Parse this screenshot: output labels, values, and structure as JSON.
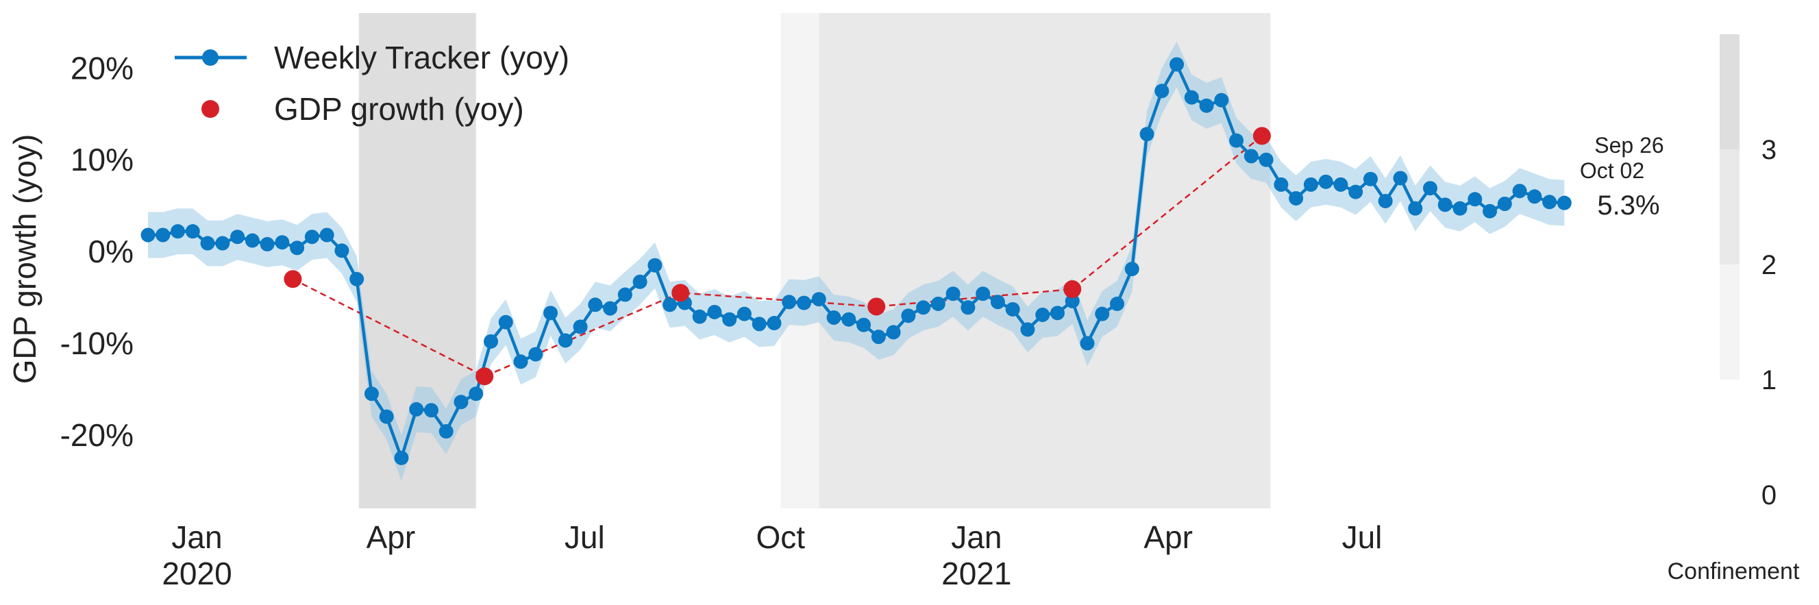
{
  "chart_data": {
    "type": "line",
    "ylabel": "GDP growth (yoy)",
    "xlabel": "",
    "ylim": [
      -28,
      26
    ],
    "xlim": [
      "2019-12-09",
      "2021-10-10"
    ],
    "grid": false,
    "legend_placement": "top-left",
    "y_ticks": [
      {
        "value": 20,
        "label": "20%"
      },
      {
        "value": 10,
        "label": "10%"
      },
      {
        "value": 0,
        "label": "0%"
      },
      {
        "value": -10,
        "label": "-10%"
      },
      {
        "value": -20,
        "label": "-20%"
      }
    ],
    "x_ticks": [
      {
        "date": "2020-01-01",
        "label": "Jan",
        "year": "2020"
      },
      {
        "date": "2020-04-01",
        "label": "Apr",
        "year": ""
      },
      {
        "date": "2020-07-01",
        "label": "Jul",
        "year": ""
      },
      {
        "date": "2020-10-01",
        "label": "Oct",
        "year": ""
      },
      {
        "date": "2021-01-01",
        "label": "Jan",
        "year": "2021"
      },
      {
        "date": "2021-04-01",
        "label": "Apr",
        "year": ""
      },
      {
        "date": "2021-07-01",
        "label": "Jul",
        "year": ""
      }
    ],
    "series": [
      {
        "name": "Weekly Tracker (yoy)",
        "color": "#0a78c2",
        "band_color": "#9ccae6",
        "band_halfwidth": 2.5,
        "start_date": "2019-12-09",
        "step_days": 7,
        "values": [
          1.8,
          1.8,
          2.2,
          2.2,
          0.9,
          0.9,
          1.6,
          1.2,
          0.8,
          1.0,
          0.4,
          1.6,
          1.8,
          0.1,
          -3.0,
          -15.5,
          -18.0,
          -22.5,
          -17.2,
          -17.3,
          -19.6,
          -16.4,
          -15.5,
          -9.8,
          -7.7,
          -12.0,
          -11.2,
          -6.7,
          -9.7,
          -8.2,
          -5.8,
          -6.2,
          -4.7,
          -3.3,
          -1.5,
          -5.8,
          -5.6,
          -7.1,
          -6.6,
          -7.4,
          -6.8,
          -7.9,
          -7.8,
          -5.5,
          -5.6,
          -5.2,
          -7.2,
          -7.4,
          -8.0,
          -9.3,
          -8.8,
          -7.0,
          -6.1,
          -5.7,
          -4.6,
          -6.1,
          -4.6,
          -5.5,
          -6.3,
          -8.5,
          -6.9,
          -6.7,
          -5.4,
          -10.0,
          -6.8,
          -5.7,
          -1.9,
          12.8,
          17.5,
          20.4,
          16.8,
          15.9,
          16.5,
          12.1,
          10.4,
          10.0,
          7.3,
          5.8,
          7.3,
          7.6,
          7.3,
          6.5,
          7.9,
          5.5,
          8.0,
          4.7,
          6.9,
          5.1,
          4.7,
          5.7,
          4.4,
          5.2,
          6.6,
          6.0,
          5.4,
          5.3
        ]
      },
      {
        "name": "GDP growth (yoy)",
        "color": "#d62027",
        "points": [
          {
            "date": "2020-02-15",
            "value": -3.0
          },
          {
            "date": "2020-05-15",
            "value": -13.6
          },
          {
            "date": "2020-08-15",
            "value": -4.5
          },
          {
            "date": "2020-11-15",
            "value": -6.0
          },
          {
            "date": "2021-02-15",
            "value": -4.1
          },
          {
            "date": "2021-05-15",
            "value": 12.6
          }
        ]
      }
    ],
    "confinement_periods": [
      {
        "start": "2020-03-17",
        "end": "2020-05-11",
        "level": 3
      },
      {
        "start": "2020-10-01",
        "end": "2020-10-19",
        "level": 1
      },
      {
        "start": "2020-10-19",
        "end": "2021-05-19",
        "level": 2
      }
    ],
    "confinement_scale": {
      "title": "Confinement",
      "ticks": [
        "0",
        "1",
        "2",
        "3"
      ],
      "colors": [
        "#f4f4f4",
        "#e9e9e9",
        "#dedede"
      ]
    },
    "annotation": {
      "date_line1": "Sep 26",
      "date_line2": "Oct 02",
      "value_label": "5.3%"
    }
  }
}
